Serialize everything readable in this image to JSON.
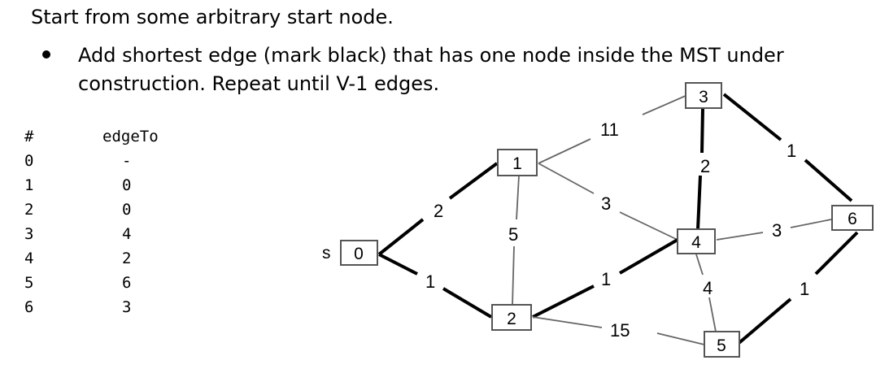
{
  "header": {
    "title": "Start from some arbitrary start node.",
    "bullet_line1": "Add shortest edge (mark black) that has one node inside the MST under",
    "bullet_line2": "construction. Repeat until V-1 edges."
  },
  "table": {
    "header_num": "#",
    "header_edge": "edgeTo",
    "rows": [
      {
        "num": "0",
        "edge": "-"
      },
      {
        "num": "1",
        "edge": "0"
      },
      {
        "num": "2",
        "edge": "0"
      },
      {
        "num": "3",
        "edge": "4"
      },
      {
        "num": "4",
        "edge": "2"
      },
      {
        "num": "5",
        "edge": "6"
      },
      {
        "num": "6",
        "edge": "3"
      }
    ]
  },
  "graph": {
    "start_label": "s",
    "nodes": [
      "0",
      "1",
      "2",
      "3",
      "4",
      "5",
      "6"
    ],
    "edges": [
      {
        "from": "0",
        "to": "1",
        "weight": "2",
        "in_mst": true
      },
      {
        "from": "0",
        "to": "2",
        "weight": "1",
        "in_mst": true
      },
      {
        "from": "1",
        "to": "3",
        "weight": "11",
        "in_mst": false
      },
      {
        "from": "1",
        "to": "2",
        "weight": "5",
        "in_mst": false
      },
      {
        "from": "1",
        "to": "4",
        "weight": "3",
        "in_mst": false
      },
      {
        "from": "2",
        "to": "4",
        "weight": "1",
        "in_mst": true
      },
      {
        "from": "2",
        "to": "5",
        "weight": "15",
        "in_mst": false
      },
      {
        "from": "3",
        "to": "4",
        "weight": "2",
        "in_mst": true
      },
      {
        "from": "3",
        "to": "6",
        "weight": "1",
        "in_mst": true
      },
      {
        "from": "4",
        "to": "6",
        "weight": "3",
        "in_mst": false
      },
      {
        "from": "4",
        "to": "5",
        "weight": "4",
        "in_mst": false
      },
      {
        "from": "5",
        "to": "6",
        "weight": "1",
        "in_mst": true
      }
    ]
  }
}
